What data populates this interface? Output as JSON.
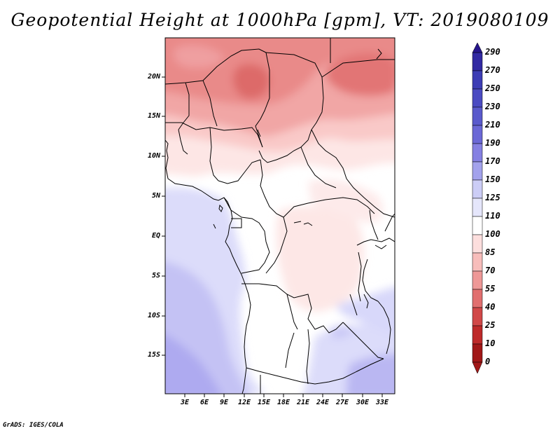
{
  "title": "Geopotential Height at 1000hPa [gpm], VT: 2019080109",
  "credit": "GrADS: IGES/COLA",
  "map": {
    "region": "Central Africa",
    "lat_labels": [
      "20N",
      "15N",
      "10N",
      "5N",
      "EQ",
      "5S",
      "10S",
      "15S"
    ],
    "lon_labels": [
      "3E",
      "6E",
      "9E",
      "12E",
      "15E",
      "18E",
      "21E",
      "24E",
      "27E",
      "30E",
      "33E"
    ]
  },
  "colorbar": {
    "labels": [
      "290",
      "270",
      "250",
      "230",
      "210",
      "190",
      "170",
      "150",
      "125",
      "110",
      "100",
      "85",
      "70",
      "55",
      "40",
      "25",
      "10",
      "0"
    ],
    "colors": [
      "#26168c",
      "#322aa3",
      "#3d3db5",
      "#4b4bc2",
      "#5a5acc",
      "#6b68d6",
      "#8580e2",
      "#a3a2ec",
      "#cccdf6",
      "#e5e6fb",
      "#ffffff",
      "#fcdedd",
      "#f7bdbb",
      "#ee9897",
      "#e16f6f",
      "#d14848",
      "#be2a2a",
      "#a11818"
    ]
  }
}
